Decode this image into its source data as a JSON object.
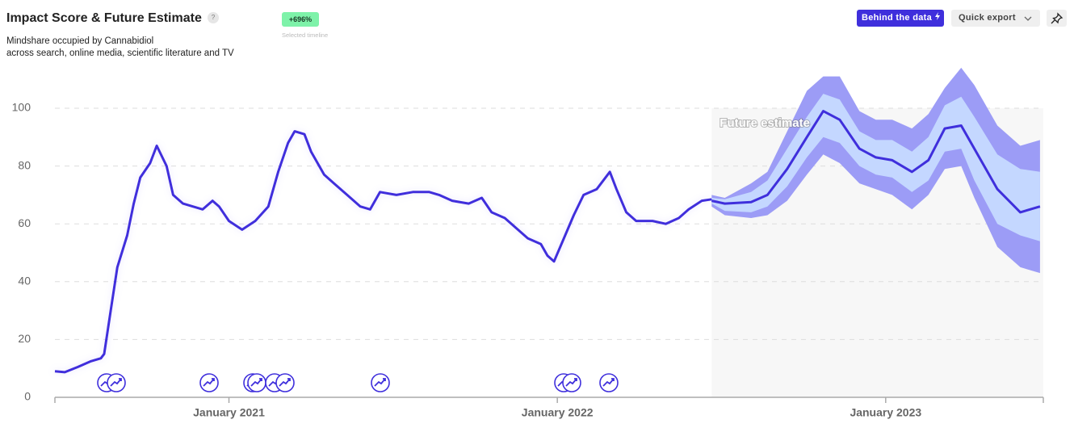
{
  "header": {
    "title": "Impact Score & Future Estimate",
    "help": "?",
    "subtitle_lines": [
      "Mindshare occupied by Cannabidiol",
      "across search, online media, scientific literature and TV"
    ],
    "badge": "+696%",
    "badge_caption": "Selected timeline",
    "buttons": [
      "Behind the data",
      "Quick export"
    ]
  },
  "chart_data": {
    "type": "line",
    "x": [
      2020.47,
      2020.5,
      2020.54,
      2020.58,
      2020.61,
      2020.62,
      2020.64,
      2020.66,
      2020.69,
      2020.71,
      2020.73,
      2020.76,
      2020.78,
      2020.81,
      2020.83,
      2020.86,
      2020.89,
      2020.92,
      2020.95,
      2020.97,
      2021.0,
      2021.04,
      2021.08,
      2021.12,
      2021.15,
      2021.18,
      2021.2,
      2021.23,
      2021.25,
      2021.29,
      2021.32,
      2021.36,
      2021.4,
      2021.43,
      2021.46,
      2021.51,
      2021.56,
      2021.61,
      2021.64,
      2021.68,
      2021.73,
      2021.77,
      2021.8,
      2021.84,
      2021.88,
      2021.91,
      2021.95,
      2021.97,
      2021.99,
      2022.02,
      2022.05,
      2022.08,
      2022.12,
      2022.16,
      2022.18,
      2022.21,
      2022.24,
      2022.29,
      2022.33,
      2022.37,
      2022.4,
      2022.44,
      2022.47
    ],
    "series": [
      {
        "color": "#3f2fdc",
        "values": [
          9,
          8.7,
          10.5,
          12.5,
          13.5,
          15,
          30,
          45,
          56,
          67,
          76,
          81,
          87,
          80,
          70,
          67,
          66,
          65,
          68,
          66,
          61,
          58,
          61,
          66,
          78,
          88,
          92,
          91,
          85,
          77,
          74,
          70,
          66,
          65,
          71,
          70,
          71,
          71,
          70,
          68,
          67,
          69,
          64,
          62,
          58,
          55,
          53,
          49,
          47,
          55,
          63,
          70,
          72,
          78,
          72,
          64,
          61,
          61,
          60,
          62,
          65,
          68,
          68.5
        ]
      }
    ],
    "forecast": {
      "label": "Future estimate",
      "color": "#3f2fdc",
      "inner_color": "#c4d7ff",
      "outer_color": "#9c9cf6",
      "shade_color": "#f7f7f7",
      "x": [
        2022.47,
        2022.51,
        2022.59,
        2022.64,
        2022.7,
        2022.76,
        2022.81,
        2022.86,
        2022.92,
        2022.97,
        2023.02,
        2023.08,
        2023.13,
        2023.18,
        2023.23,
        2023.27,
        2023.34,
        2023.41,
        2023.47
      ],
      "values": [
        68,
        67,
        67.5,
        70,
        79,
        90,
        99,
        96,
        86,
        83,
        82,
        78,
        82,
        93,
        94,
        86,
        72,
        64,
        66
      ],
      "inner_low": [
        67,
        64.5,
        64,
        66,
        73,
        83,
        90,
        88,
        80,
        77,
        76,
        71,
        75,
        85,
        86,
        75,
        60,
        56,
        54
      ],
      "inner_high": [
        69,
        68.5,
        71,
        75,
        86,
        97,
        105,
        103,
        92,
        89,
        89,
        85,
        90,
        101,
        104,
        97,
        84,
        79,
        78
      ],
      "outer_low": [
        66,
        63,
        62,
        63,
        68,
        77,
        84,
        81,
        74,
        72,
        70,
        65,
        70,
        79,
        80,
        69,
        52,
        45,
        43
      ],
      "outer_high": [
        70,
        69,
        74,
        78,
        92,
        106,
        111,
        111,
        99,
        96,
        96,
        93,
        98,
        107,
        114,
        108,
        94,
        87,
        89
      ]
    },
    "xlim": [
      2020.47,
      2023.48
    ],
    "xticks": [
      {
        "value": 2021,
        "label": "January 2021"
      },
      {
        "value": 2022,
        "label": "January 2022"
      },
      {
        "value": 2023,
        "label": "January 2023"
      }
    ],
    "ylim": [
      0,
      100
    ],
    "yticks": [
      0,
      20,
      40,
      60,
      80,
      100
    ],
    "grid": true
  }
}
